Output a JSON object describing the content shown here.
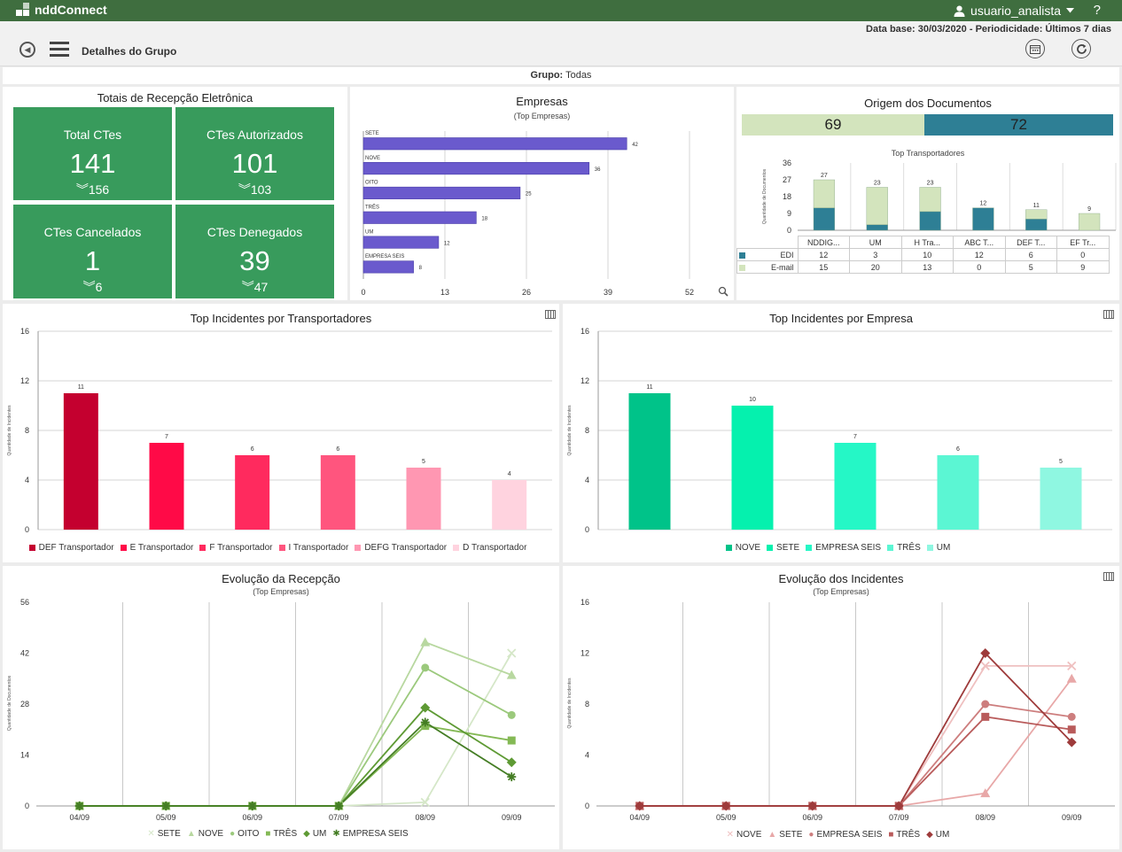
{
  "app": {
    "brand": "nddConnect",
    "username": "usuario_analista",
    "help_label": "?",
    "database_text": "Data base: 30/03/2020 - Periodicidade: Últimos 7 dias",
    "page_title": "Detalhes do Grupo",
    "group_label": "Grupo:",
    "group_value": "Todas",
    "icons": [
      "back-icon",
      "menu-icon",
      "calendar-icon",
      "refresh-icon",
      "user-icon",
      "chevron-down-icon",
      "table-icon",
      "zoom-icon"
    ]
  },
  "totals": {
    "title": "Totais de Recepção Eletrônica",
    "cards": [
      {
        "label": "Total CTes",
        "value": "141",
        "sub": "156"
      },
      {
        "label": "CTes Autorizados",
        "value": "101",
        "sub": "103"
      },
      {
        "label": "CTes Cancelados",
        "value": "1",
        "sub": "6"
      },
      {
        "label": "CTes Denegados",
        "value": "39",
        "sub": "47"
      }
    ],
    "color": "#389b5c"
  },
  "companies": {
    "title": "Empresas",
    "subtitle": "(Top Empresas)",
    "color": "#6a5acd"
  },
  "origin": {
    "title": "Origem dos Documentos",
    "totals": [
      {
        "value": "69",
        "color": "#d3e4bd"
      },
      {
        "value": "72",
        "color": "#2e7f95"
      }
    ],
    "subtitle": "Top Transportadores",
    "ylabel": "Quantidade de Documentos",
    "columns": [
      "NDDIG...",
      "UM",
      "H Tra...",
      "ABC T...",
      "DEF T...",
      "EF Tr..."
    ],
    "rows": [
      {
        "name": "EDI",
        "color": "#2e7f95",
        "values": [
          "12",
          "3",
          "10",
          "12",
          "6",
          "0"
        ]
      },
      {
        "name": "E-mail",
        "color": "#d3e4bd",
        "values": [
          "15",
          "20",
          "13",
          "0",
          "5",
          "9"
        ]
      }
    ]
  },
  "chart_data": [
    {
      "type": "bar",
      "orientation": "horizontal",
      "title": "Empresas",
      "subtitle": "(Top Empresas)",
      "categories": [
        "SETE",
        "NOVE",
        "OITO",
        "TRÊS",
        "UM",
        "EMPRESA SEIS"
      ],
      "values": [
        42,
        36,
        25,
        18,
        12,
        8
      ],
      "xlim": [
        0,
        52
      ],
      "xticks": [
        "0",
        "13",
        "26",
        "39",
        "52"
      ]
    },
    {
      "type": "bar",
      "stacked": true,
      "title": "Top Transportadores",
      "ylabel": "Quantidade de Documentos",
      "categories": [
        "NDDIG...",
        "UM",
        "H Tra...",
        "ABC T...",
        "DEF T...",
        "EF Tr..."
      ],
      "series": [
        {
          "name": "EDI",
          "values": [
            12,
            3,
            10,
            12,
            6,
            0
          ]
        },
        {
          "name": "E-mail",
          "values": [
            15,
            20,
            13,
            0,
            5,
            9
          ]
        }
      ],
      "totals": [
        "27",
        "23",
        "23",
        "12",
        "11",
        "9"
      ],
      "ylim": [
        0,
        36
      ],
      "yticks": [
        "0",
        "9",
        "18",
        "27",
        "36"
      ]
    },
    {
      "type": "bar",
      "title": "Top Incidentes por Transportadores",
      "ylabel": "Quantidade de Incidentes",
      "categories": [
        "DEF Transportador",
        "E Transportador",
        "F Transportador",
        "I Transportador",
        "DEFG Transportador",
        "D Transportador"
      ],
      "values": [
        11,
        7,
        6,
        6,
        5,
        4
      ],
      "colors": [
        "#c4002f",
        "#ff0a47",
        "#ff2a5e",
        "#ff557e",
        "#ff97b2",
        "#ffd3df"
      ],
      "ylim": [
        0,
        16
      ],
      "yticks": [
        "0",
        "4",
        "8",
        "12",
        "16"
      ]
    },
    {
      "type": "bar",
      "title": "Top Incidentes por Empresa",
      "ylabel": "Quantidade de Incidentes",
      "categories": [
        "NOVE",
        "SETE",
        "EMPRESA SEIS",
        "TRÊS",
        "UM"
      ],
      "values": [
        11,
        10,
        7,
        6,
        5
      ],
      "colors": [
        "#00c389",
        "#05f1ae",
        "#25f7c6",
        "#5bf6d3",
        "#8ff7e1"
      ],
      "ylim": [
        0,
        16
      ],
      "yticks": [
        "0",
        "4",
        "8",
        "12",
        "16"
      ]
    },
    {
      "type": "line",
      "title": "Evolução da Recepção",
      "subtitle": "(Top Empresas)",
      "ylabel": "Quantidade de Documentos",
      "x": [
        "04/09",
        "05/09",
        "06/09",
        "07/09",
        "08/09",
        "09/09"
      ],
      "series": [
        {
          "name": "SETE",
          "marker": "x",
          "color": "#d5e7c8",
          "values": [
            0,
            0,
            0,
            0,
            1,
            42
          ]
        },
        {
          "name": "NOVE",
          "marker": "triangle",
          "color": "#b8d8a0",
          "values": [
            0,
            0,
            0,
            0,
            45,
            36
          ]
        },
        {
          "name": "OITO",
          "marker": "circle",
          "color": "#9bc97c",
          "values": [
            0,
            0,
            0,
            0,
            38,
            25
          ]
        },
        {
          "name": "TRÊS",
          "marker": "square",
          "color": "#84b955",
          "values": [
            0,
            0,
            0,
            0,
            22,
            18
          ]
        },
        {
          "name": "UM",
          "marker": "diamond",
          "color": "#5e9a34",
          "values": [
            0,
            0,
            0,
            0,
            27,
            12
          ]
        },
        {
          "name": "EMPRESA SEIS",
          "marker": "asterisk",
          "color": "#447d24",
          "values": [
            0,
            0,
            0,
            0,
            23,
            8
          ]
        }
      ],
      "ylim": [
        0,
        56
      ],
      "yticks": [
        "0",
        "14",
        "28",
        "42",
        "56"
      ]
    },
    {
      "type": "line",
      "title": "Evolução dos Incidentes",
      "subtitle": "(Top Empresas)",
      "ylabel": "Quantidade de Incidentes",
      "x": [
        "04/09",
        "05/09",
        "06/09",
        "07/09",
        "08/09",
        "09/09"
      ],
      "series": [
        {
          "name": "NOVE",
          "marker": "x",
          "color": "#efc0c0",
          "values": [
            0,
            0,
            0,
            0,
            11,
            11
          ]
        },
        {
          "name": "SETE",
          "marker": "triangle",
          "color": "#e8a8a8",
          "values": [
            0,
            0,
            0,
            0,
            1,
            10
          ]
        },
        {
          "name": "EMPRESA SEIS",
          "marker": "circle",
          "color": "#cd7e7e",
          "values": [
            0,
            0,
            0,
            0,
            8,
            7
          ]
        },
        {
          "name": "TRÊS",
          "marker": "square",
          "color": "#b95b5b",
          "values": [
            0,
            0,
            0,
            0,
            7,
            6
          ]
        },
        {
          "name": "UM",
          "marker": "diamond",
          "color": "#9e3b3b",
          "values": [
            0,
            0,
            0,
            0,
            12,
            5
          ]
        }
      ],
      "ylim": [
        0,
        16
      ],
      "yticks": [
        "0",
        "4",
        "8",
        "12",
        "16"
      ]
    }
  ]
}
